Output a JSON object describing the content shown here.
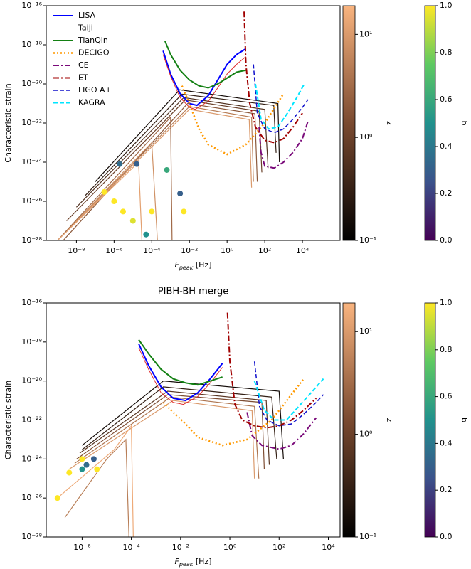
{
  "chart_data": [
    {
      "type": "line",
      "xlog": true,
      "ylog": true,
      "legend": "upper left",
      "x_label": {
        "symbol": "F",
        "subscript": "peak",
        "unit": " [Hz]"
      },
      "y_label": "Characteristic strain",
      "xlim": [
        2.5e-10,
        1000000.0
      ],
      "ylim": [
        1e-28,
        1e-16
      ],
      "xticks": [
        {
          "value": 1e-08,
          "label": "10⁻⁸"
        },
        {
          "value": 1e-06,
          "label": "10⁻⁶"
        },
        {
          "value": 0.0001,
          "label": "10⁻⁴"
        },
        {
          "value": 0.01,
          "label": "10⁻²"
        },
        {
          "value": 1,
          "label": "10⁰"
        },
        {
          "value": 100,
          "label": "10²"
        },
        {
          "value": 10000,
          "label": "10⁴"
        }
      ],
      "yticks": [
        {
          "value": 1e-16,
          "label": "10⁻¹⁶"
        },
        {
          "value": 1e-18,
          "label": "10⁻¹⁸"
        },
        {
          "value": 1e-20,
          "label": "10⁻²⁰"
        },
        {
          "value": 1e-22,
          "label": "10⁻²²"
        },
        {
          "value": 1e-24,
          "label": "10⁻²⁴"
        },
        {
          "value": 1e-26,
          "label": "10⁻²⁶"
        },
        {
          "value": 1e-28,
          "label": "10⁻²⁸"
        }
      ],
      "series": [
        {
          "name": "LISA",
          "color": "#0000ff",
          "style": "solid",
          "width": 2,
          "x": [
            0.0004,
            0.001,
            0.0032,
            0.01,
            0.025,
            0.1,
            0.32,
            1,
            3.2,
            10
          ],
          "values": [
            5e-19,
            3.2e-20,
            3.2e-21,
            1e-21,
            8e-22,
            2.5e-21,
            1.6e-20,
            1e-19,
            3.2e-19,
            6.3e-19
          ]
        },
        {
          "name": "Taiji",
          "color": "#e03030",
          "style": "solid",
          "width": 1,
          "x": [
            0.0004,
            0.001,
            0.0032,
            0.01,
            0.02,
            0.1,
            0.32,
            1,
            3.2,
            10
          ],
          "values": [
            3.2e-19,
            2.5e-20,
            2e-21,
            6.3e-22,
            5e-22,
            1.3e-21,
            6.3e-21,
            3.2e-20,
            1e-19,
            2.5e-19
          ]
        },
        {
          "name": "TianQin",
          "color": "#138013",
          "style": "solid",
          "width": 2,
          "x": [
            0.0005,
            0.001,
            0.0032,
            0.01,
            0.032,
            0.1,
            0.32,
            1,
            3.2,
            10
          ],
          "values": [
            1.6e-18,
            3.2e-19,
            5e-20,
            1.6e-20,
            8e-21,
            6.3e-21,
            1e-20,
            2e-20,
            4e-20,
            5e-20
          ]
        },
        {
          "name": "DECIGO",
          "color": "#ff9900",
          "style": "dotted",
          "width": 2.5,
          "x": [
            0.004,
            0.01,
            0.032,
            0.1,
            1,
            10,
            100,
            1000
          ],
          "values": [
            8e-21,
            1e-21,
            5e-23,
            8e-24,
            2.5e-24,
            8e-24,
            1e-22,
            3.2e-21
          ]
        },
        {
          "name": "CE",
          "color": "#7a0a7a",
          "style": "dashdot",
          "width": 2,
          "x": [
            50,
            63,
            100,
            320,
            1000,
            3200,
            10000,
            20000
          ],
          "values": [
            6.3e-23,
            3.2e-24,
            6.3e-25,
            5e-25,
            1e-24,
            3.2e-24,
            1.6e-23,
            1.3e-22
          ]
        },
        {
          "name": "ET",
          "color": "#a00000",
          "style": "dashdot",
          "width": 2,
          "x": [
            8,
            10,
            16,
            32,
            100,
            320,
            1000,
            3200,
            10000
          ],
          "values": [
            5e-17,
            1e-19,
            1e-21,
            6.3e-23,
            1.3e-23,
            1e-23,
            1.6e-23,
            6.3e-23,
            3.2e-22
          ]
        },
        {
          "name": "LIGO A+",
          "color": "#1010cc",
          "style": "dashed",
          "width": 1.5,
          "x": [
            25,
            40,
            100,
            320,
            1000,
            3200,
            10000,
            20000
          ],
          "values": [
            1e-19,
            3.2e-22,
            5e-23,
            3.2e-23,
            5e-23,
            1.6e-22,
            6.3e-22,
            1.6e-21
          ]
        },
        {
          "name": "KAGRA",
          "color": "#00e5ff",
          "style": "dashed",
          "width": 2,
          "x": [
            32,
            63,
            160,
            500,
            1600,
            5000,
            12600
          ],
          "values": [
            1e-20,
            1.6e-22,
            5e-23,
            6.3e-23,
            3.2e-22,
            2e-21,
            1e-20
          ]
        }
      ],
      "tracks": [
        {
          "z": 0.15,
          "x": [
            1e-07,
            0.003,
            500,
            600
          ],
          "values": [
            1e-25,
            5e-21,
            1e-21,
            1e-24
          ]
        },
        {
          "z": 0.3,
          "x": [
            3e-08,
            0.004,
            300,
            400
          ],
          "values": [
            2e-26,
            3e-21,
            8e-22,
            3e-24
          ]
        },
        {
          "z": 0.6,
          "x": [
            1e-08,
            0.005,
            100,
            150
          ],
          "values": [
            5e-27,
            2e-21,
            5e-22,
            5e-25
          ]
        },
        {
          "z": 1,
          "x": [
            3e-09,
            0.006,
            50,
            70
          ],
          "values": [
            1e-27,
            1.5e-21,
            4e-22,
            3e-25
          ]
        },
        {
          "z": 2,
          "x": [
            2e-09,
            0.008,
            30,
            40
          ],
          "values": [
            1e-28,
            1e-21,
            3e-22,
            1e-25
          ]
        },
        {
          "z": 5,
          "x": [
            1e-09,
            0.01,
            20,
            25
          ],
          "values": [
            1e-28,
            7e-22,
            2e-22,
            1e-25
          ]
        },
        {
          "z": 10,
          "x": [
            1e-09,
            0.01,
            15,
            20
          ],
          "values": [
            1e-28,
            5e-22,
            1.5e-22,
            5e-26
          ]
        },
        {
          "z": 8,
          "x": [
            1e-09,
            0.0001,
            0.0002
          ],
          "values": [
            1e-28,
            1e-23,
            1e-28
          ]
        },
        {
          "z": 3,
          "x": [
            1e-09,
            0.001,
            0.0012
          ],
          "values": [
            1e-28,
            2e-22,
            1e-28
          ]
        },
        {
          "z": 12,
          "x": [
            1e-09,
            2e-05,
            3e-05
          ],
          "values": [
            1e-28,
            1e-24,
            1e-28
          ]
        }
      ],
      "points": {
        "x": [
          3e-07,
          1e-06,
          3e-06,
          1e-05,
          0.0001,
          0.005,
          2e-06,
          1.6e-05,
          0.00063,
          0.0032,
          5e-05
        ],
        "values": [
          3e-26,
          1e-26,
          3e-27,
          1e-27,
          3e-27,
          3e-27,
          8e-25,
          8e-25,
          4e-25,
          2.5e-26,
          2e-28
        ],
        "q": [
          1,
          1,
          1,
          0.95,
          1,
          1,
          0.35,
          0.3,
          0.6,
          0.3,
          0.5
        ]
      },
      "colormap": [
        "#000000",
        "#7a4a30",
        "#f9b47f"
      ],
      "q_colormap": [
        "#440154",
        "#3b528b",
        "#21918c",
        "#5ec962",
        "#fde725"
      ],
      "colorbars": [
        {
          "label": "z",
          "log": true,
          "lim": [
            0.1,
            19
          ],
          "ticks": [
            {
              "value": 0.1,
              "label": "10⁻¹"
            },
            {
              "value": 1,
              "label": "10⁰"
            },
            {
              "value": 10,
              "label": "10¹"
            }
          ]
        },
        {
          "label": "q",
          "log": false,
          "lim": [
            0,
            1
          ],
          "ticks": [
            {
              "value": 0,
              "label": "0.0"
            },
            0.2,
            0.4,
            0.6,
            0.8,
            {
              "value": 1,
              "label": "1.0"
            }
          ]
        }
      ]
    },
    {
      "type": "line",
      "xlog": true,
      "ylog": true,
      "title": "PIBH-BH merge",
      "x_label": {
        "symbol": "F",
        "subscript": "peak",
        "unit": " [Hz]"
      },
      "y_label": "Characteristic strain",
      "xlim": [
        3.5e-08,
        30000.0
      ],
      "ylim": [
        1e-28,
        1e-16
      ],
      "xticks": [
        {
          "value": 1e-06,
          "label": "10⁻⁶"
        },
        {
          "value": 0.0001,
          "label": "10⁻⁴"
        },
        {
          "value": 0.01,
          "label": "10⁻²"
        },
        {
          "value": 1,
          "label": "10⁰"
        },
        {
          "value": 100,
          "label": "10²"
        },
        {
          "value": 10000,
          "label": "10⁴"
        }
      ],
      "yticks": [
        {
          "value": 1e-16,
          "label": "10⁻¹⁶"
        },
        {
          "value": 1e-18,
          "label": "10⁻¹⁸"
        },
        {
          "value": 1e-20,
          "label": "10⁻²⁰"
        },
        {
          "value": 1e-22,
          "label": "10⁻²²"
        },
        {
          "value": 1e-24,
          "label": "10⁻²⁴"
        },
        {
          "value": 1e-26,
          "label": "10⁻²⁶"
        },
        {
          "value": 1e-28,
          "label": "10⁻²⁸"
        }
      ],
      "series": [
        {
          "name": "LISA",
          "color": "#0000ff",
          "style": "solid",
          "width": 2,
          "x": [
            0.0002,
            0.0005,
            0.0016,
            0.005,
            0.016,
            0.05,
            0.16,
            0.5
          ],
          "values": [
            8e-19,
            6.3e-20,
            5e-21,
            1.3e-21,
            1e-21,
            2.5e-21,
            1.3e-20,
            8e-20
          ]
        },
        {
          "name": "Taiji",
          "color": "#e03030",
          "style": "solid",
          "width": 1,
          "x": [
            0.0002,
            0.0005,
            0.0016,
            0.005,
            0.013,
            0.05,
            0.16,
            0.5
          ],
          "values": [
            5e-19,
            4e-20,
            2.5e-21,
            8e-22,
            6.3e-22,
            1.6e-21,
            8e-21,
            5e-20
          ]
        },
        {
          "name": "TianQin",
          "color": "#138013",
          "style": "solid",
          "width": 2,
          "x": [
            0.0002,
            0.0005,
            0.0016,
            0.005,
            0.016,
            0.05,
            0.16,
            0.5
          ],
          "values": [
            1.3e-18,
            2.5e-19,
            4e-20,
            1.3e-20,
            8e-21,
            6.3e-21,
            1e-20,
            1.6e-20
          ]
        },
        {
          "name": "DECIGO",
          "color": "#ff9900",
          "style": "dotted",
          "width": 2.5,
          "x": [
            0.002,
            0.005,
            0.016,
            0.05,
            0.5,
            5,
            50,
            1000
          ],
          "values": [
            8e-22,
            2.5e-22,
            6.3e-23,
            1.3e-23,
            5e-24,
            1e-23,
            1e-22,
            1.3e-20
          ]
        },
        {
          "name": "CE",
          "color": "#7a0a7a",
          "style": "dashdot",
          "width": 2,
          "x": [
            5,
            8,
            20,
            100,
            320,
            1000,
            3200
          ],
          "values": [
            2.5e-22,
            1.6e-23,
            5e-24,
            3.2e-24,
            5e-24,
            2e-23,
            1.3e-22
          ]
        },
        {
          "name": "ET",
          "color": "#a00000",
          "style": "dashdot",
          "width": 2,
          "x": [
            0.8,
            1,
            1.6,
            3.2,
            10,
            32,
            100,
            320,
            1000,
            3200
          ],
          "values": [
            3.2e-17,
            1e-19,
            6.3e-22,
            1e-22,
            5e-23,
            4e-23,
            5e-23,
            1e-22,
            3.2e-22,
            1.3e-21
          ]
        },
        {
          "name": "LIGO A+",
          "color": "#1010cc",
          "style": "dashed",
          "width": 1.5,
          "x": [
            10,
            16,
            32,
            100,
            320,
            1000,
            3200,
            6300
          ],
          "values": [
            1e-19,
            5e-22,
            1e-22,
            5e-23,
            6.3e-23,
            2e-22,
            8e-22,
            2e-21
          ]
        },
        {
          "name": "KAGRA",
          "color": "#00e5ff",
          "style": "dashed",
          "width": 2,
          "x": [
            10,
            25,
            63,
            200,
            630,
            2000,
            6300
          ],
          "values": [
            1e-20,
            3.2e-22,
            1e-22,
            1e-22,
            5e-22,
            2.5e-21,
            1.3e-20
          ]
        }
      ],
      "tracks": [
        {
          "z": 0.15,
          "x": [
            1e-06,
            0.002,
            100,
            150
          ],
          "values": [
            5e-24,
            1e-20,
            3e-21,
            1e-24
          ]
        },
        {
          "z": 0.3,
          "x": [
            1e-06,
            0.002,
            50,
            80
          ],
          "values": [
            3e-24,
            5e-21,
            1.5e-21,
            1e-24
          ]
        },
        {
          "z": 0.7,
          "x": [
            8e-07,
            0.003,
            30,
            40
          ],
          "values": [
            2e-24,
            3e-21,
            1e-21,
            5e-25
          ]
        },
        {
          "z": 1.5,
          "x": [
            6e-07,
            0.003,
            20,
            25
          ],
          "values": [
            1e-24,
            2e-21,
            8e-22,
            3e-25
          ]
        },
        {
          "z": 4,
          "x": [
            5e-07,
            0.004,
            10,
            15
          ],
          "values": [
            6e-25,
            1.5e-21,
            5e-22,
            1e-25
          ]
        },
        {
          "z": 10,
          "x": [
            3e-07,
            0.005,
            8,
            10
          ],
          "values": [
            3e-25,
            1e-21,
            3e-22,
            1e-25
          ]
        },
        {
          "z": 15,
          "x": [
            1e-07,
            2e-05,
            0.0001,
            0.00012
          ],
          "values": [
            1e-26,
            3e-24,
            5e-23,
            1e-28
          ]
        },
        {
          "z": 5,
          "x": [
            2e-07,
            1e-05,
            6e-05,
            8e-05
          ],
          "values": [
            1e-27,
            1e-24,
            1e-23,
            1e-28
          ]
        }
      ],
      "points": {
        "x": [
          3e-07,
          1e-06,
          1e-07,
          4e-06,
          1.5e-06,
          3e-06,
          1e-06
        ],
        "values": [
          2e-25,
          1e-24,
          1e-26,
          3e-25,
          5e-25,
          1e-24,
          3e-25
        ],
        "q": [
          1,
          1,
          1,
          1,
          0.35,
          0.3,
          0.5
        ]
      },
      "colormap": [
        "#000000",
        "#7a4a30",
        "#f9b47f"
      ],
      "q_colormap": [
        "#440154",
        "#3b528b",
        "#21918c",
        "#5ec962",
        "#fde725"
      ],
      "colorbars": [
        {
          "label": "z",
          "log": true,
          "lim": [
            0.1,
            19
          ],
          "ticks": [
            {
              "value": 0.1,
              "label": "10⁻¹"
            },
            {
              "value": 1,
              "label": "10⁰"
            },
            {
              "value": 10,
              "label": "10¹"
            }
          ]
        },
        {
          "label": "q",
          "log": false,
          "lim": [
            0,
            1
          ],
          "ticks": [
            {
              "value": 0,
              "label": "0.0"
            },
            0.2,
            0.4,
            0.6,
            0.8,
            {
              "value": 1,
              "label": "1.0"
            }
          ]
        }
      ]
    }
  ]
}
